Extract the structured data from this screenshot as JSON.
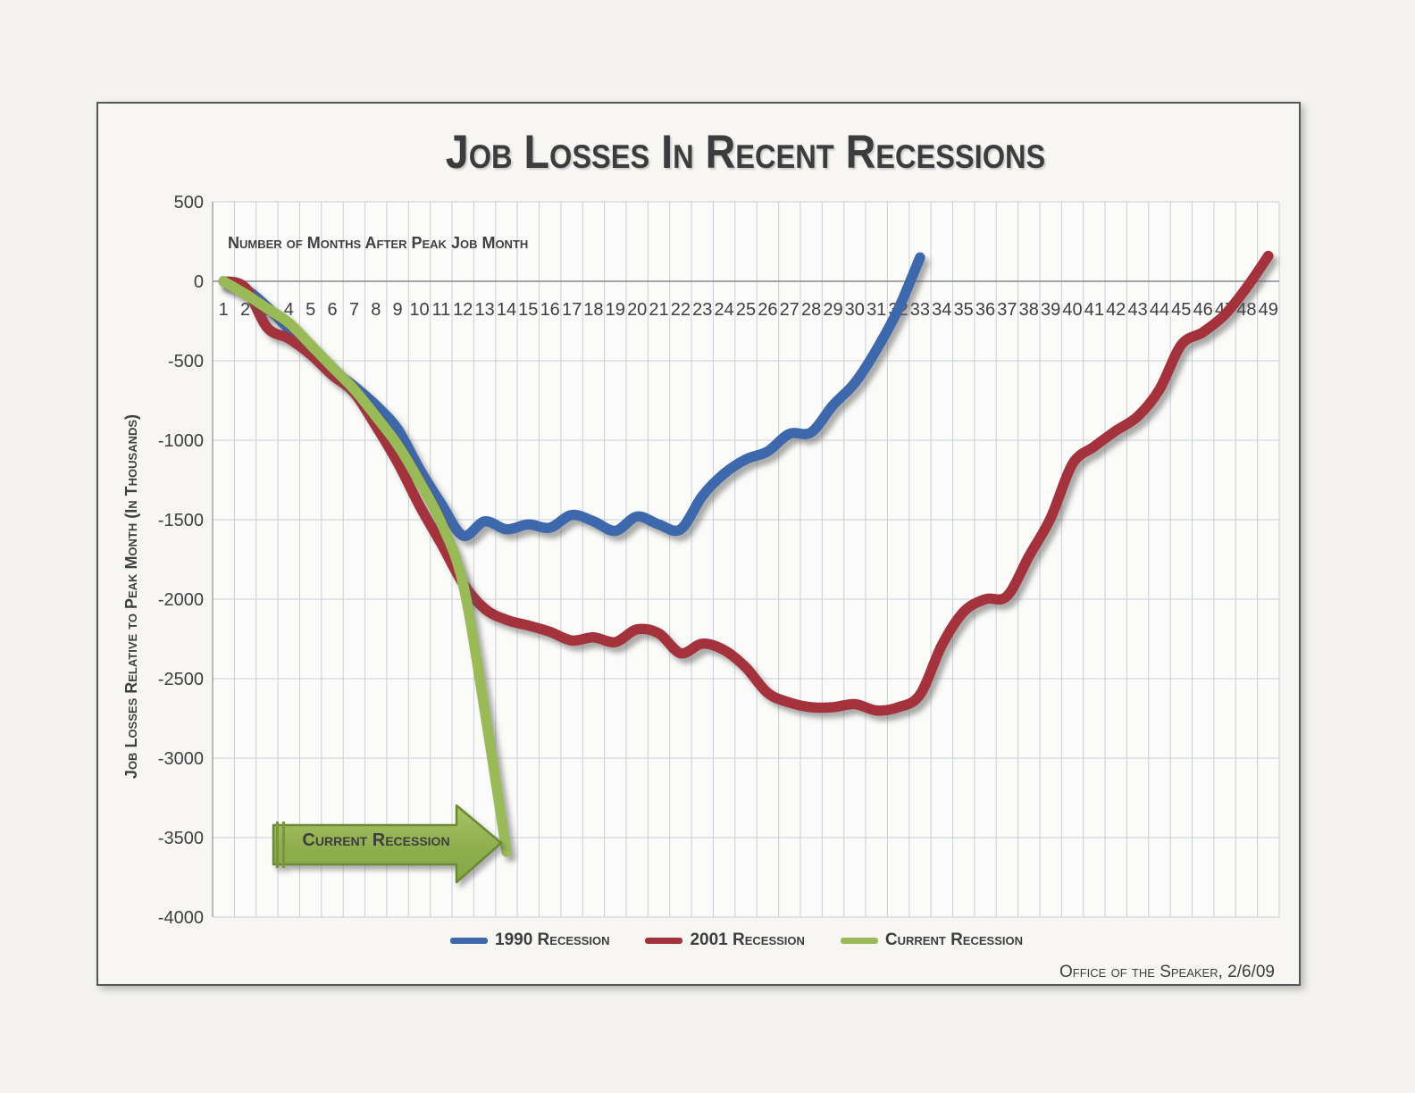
{
  "title": "Job Losses In Recent Recessions",
  "y_axis_title": "Job Losses Relative to Peak Month (In Thousands)",
  "footer": "Office of the Speaker, 2/6/09",
  "annotations": {
    "x_axis_note": "Number of Months After Peak Job Month",
    "arrow_label": "Current Recession"
  },
  "legend": [
    {
      "label": "1990 Recession",
      "color": "#3d68ac"
    },
    {
      "label": "2001 Recession",
      "color": "#a3323c"
    },
    {
      "label": "Current Recession",
      "color": "#9aba58"
    }
  ],
  "colors": {
    "blue_line": "#3d68ac",
    "red_line": "#a3323c",
    "green_line": "#9aba58",
    "arrow_fill_top": "#a9c466",
    "arrow_fill_bottom": "#86a647",
    "arrow_border": "#6b8a34",
    "gridline": "#c9cfd8",
    "zero_line": "#85898f",
    "text": "#3e3e41",
    "plot_background": "#fbfbf9"
  },
  "chart_data": {
    "type": "line",
    "title": "Job Losses In Recent Recessions",
    "xlabel": "Number of Months After Peak Job Month",
    "ylabel": "Job Losses Relative to Peak Month (In Thousands)",
    "ylim": [
      -4000,
      500
    ],
    "y_tick_step": 500,
    "y_ticks": [
      500,
      0,
      -500,
      -1000,
      -1500,
      -2000,
      -2500,
      -3000,
      -3500,
      -4000
    ],
    "x_ticks": [
      1,
      2,
      3,
      4,
      5,
      6,
      7,
      8,
      9,
      10,
      11,
      12,
      13,
      14,
      15,
      16,
      17,
      18,
      19,
      20,
      21,
      22,
      23,
      24,
      25,
      26,
      27,
      28,
      29,
      30,
      31,
      32,
      33,
      34,
      35,
      36,
      37,
      38,
      39,
      40,
      41,
      42,
      43,
      44,
      45,
      46,
      47,
      48,
      49
    ],
    "grid": "both",
    "legend_position": "bottom",
    "series": [
      {
        "name": "1990 Recession",
        "color": "#3d68ac",
        "start_month": 1,
        "values": [
          0,
          -50,
          -160,
          -300,
          -430,
          -555,
          -660,
          -780,
          -930,
          -1180,
          -1400,
          -1600,
          -1510,
          -1560,
          -1530,
          -1550,
          -1470,
          -1510,
          -1570,
          -1480,
          -1530,
          -1560,
          -1350,
          -1210,
          -1120,
          -1070,
          -960,
          -950,
          -780,
          -640,
          -430,
          -175,
          150
        ]
      },
      {
        "name": "2001 Recession",
        "color": "#a3323c",
        "start_month": 1,
        "values": [
          0,
          -40,
          -290,
          -360,
          -460,
          -590,
          -700,
          -910,
          -1140,
          -1410,
          -1650,
          -1900,
          -2060,
          -2130,
          -2165,
          -2205,
          -2260,
          -2240,
          -2270,
          -2190,
          -2215,
          -2340,
          -2280,
          -2320,
          -2430,
          -2590,
          -2650,
          -2680,
          -2680,
          -2660,
          -2700,
          -2680,
          -2600,
          -2290,
          -2080,
          -2000,
          -1980,
          -1730,
          -1490,
          -1150,
          -1040,
          -940,
          -850,
          -680,
          -400,
          -320,
          -210,
          -40,
          160
        ]
      },
      {
        "name": "Current Recession",
        "color": "#9aba58",
        "start_month": 1,
        "values": [
          0,
          -80,
          -170,
          -260,
          -400,
          -540,
          -680,
          -850,
          -1030,
          -1260,
          -1520,
          -1900,
          -2700,
          -3590
        ]
      }
    ]
  }
}
